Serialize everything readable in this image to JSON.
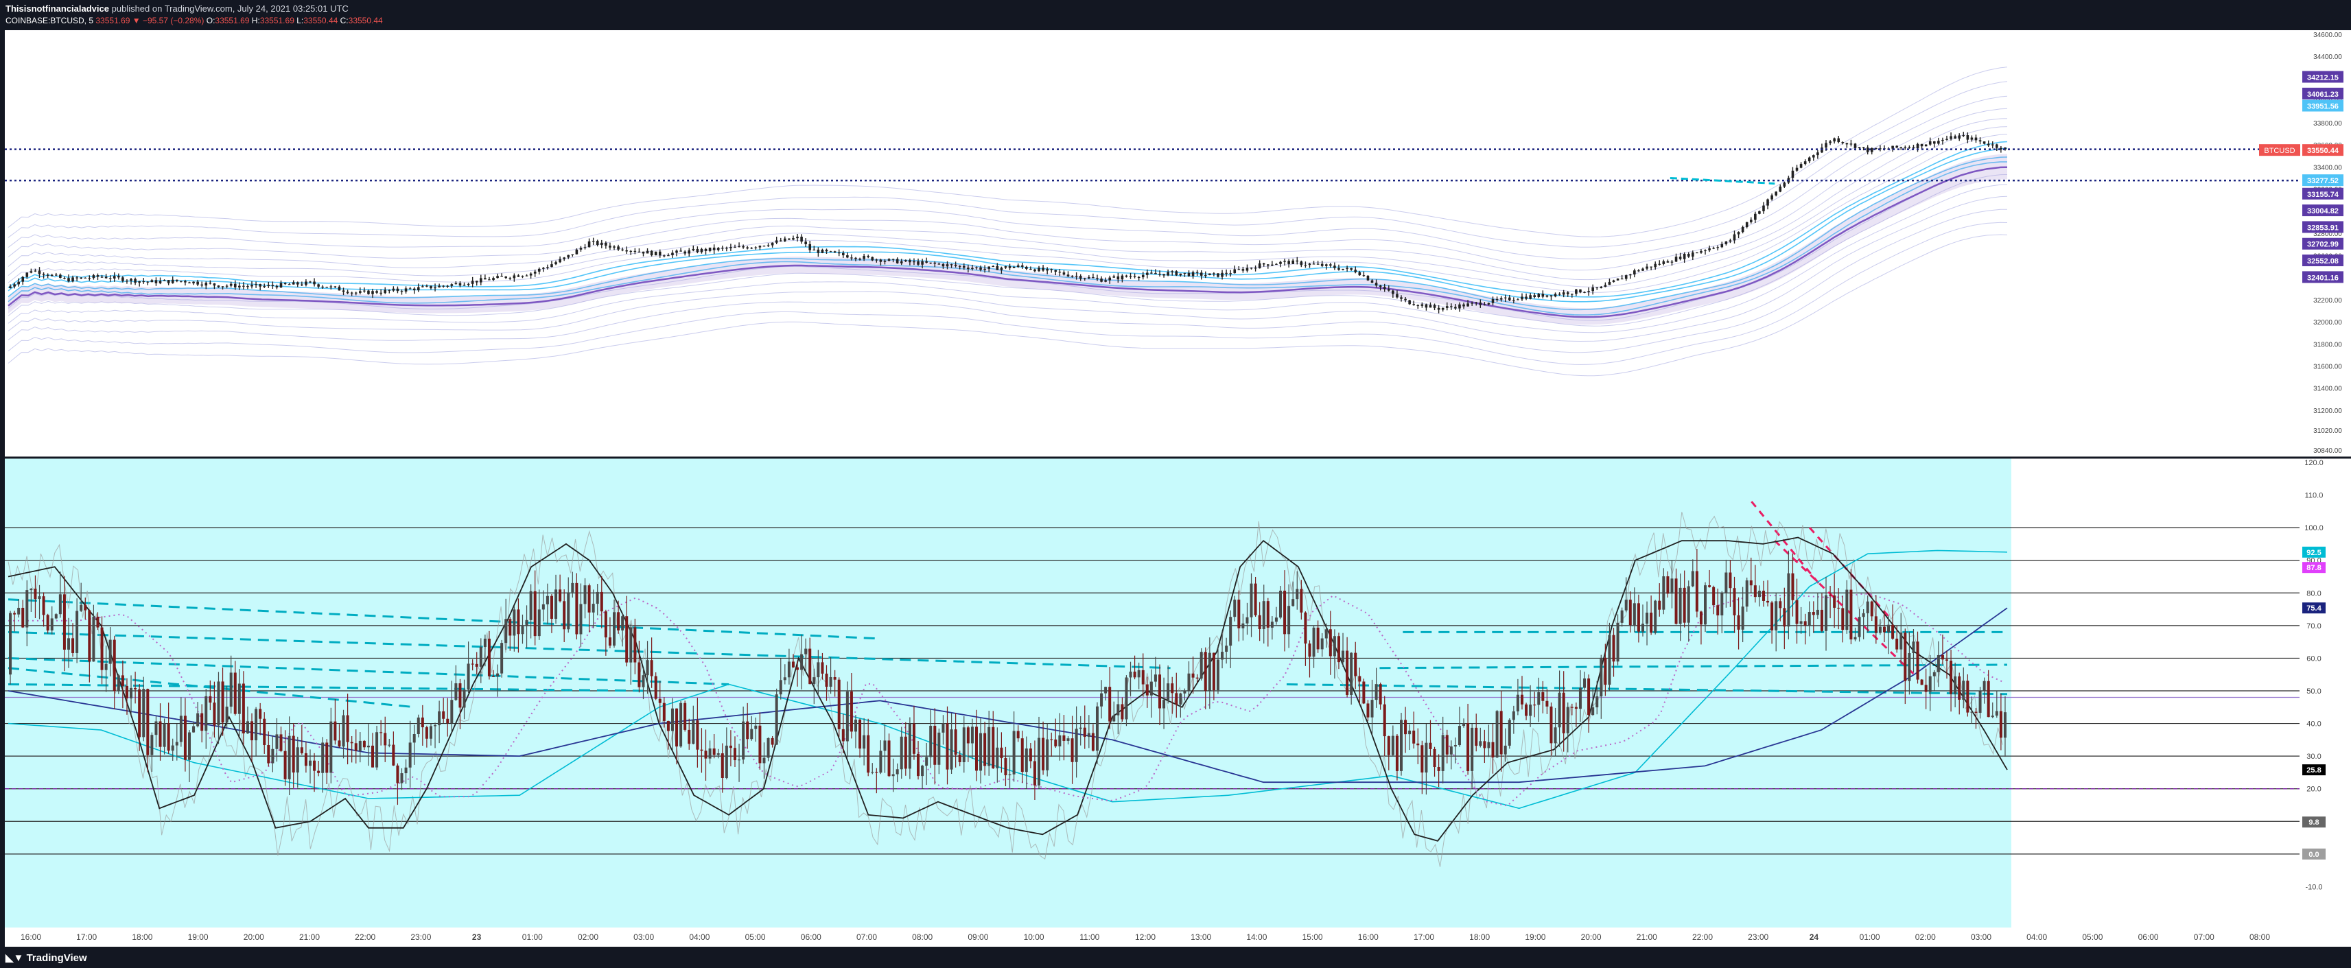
{
  "header": {
    "author": "Thisisnotfinancialadvice",
    "published": " published on TradingView.com, July 24, 2021 03:25:01 UTC",
    "symbol": "COINBASE:BTCUSD, 5",
    "last": "33551.69",
    "change": "▼ −95.57 (−0.28%)",
    "open_label": "O:",
    "open": "33551.69",
    "high_label": "H:",
    "high": "33551.69",
    "low_label": "L:",
    "low": "33550.44",
    "close_label": "C:",
    "close": "33550.44"
  },
  "footer": {
    "brand": "TradingView",
    "logo_icon": "tradingview-logo-icon"
  },
  "colors": {
    "background": "#131722",
    "pane": "#ffffff",
    "osc_bg": "#c8fafc",
    "up": "#4a4a4a",
    "down": "#7b1a1a",
    "band": "#8a8fd8",
    "cyan": "#00bcd4",
    "magenta": "#e91e63",
    "label_purple": "#5b3aa6"
  },
  "chart_data": [
    {
      "type": "candlestick",
      "symbol": "COINBASE:BTCUSD",
      "interval": "5",
      "ylim": [
        30840,
        34600
      ],
      "y_ticks": [
        "34600.00",
        "34400.00",
        "34200.00",
        "34000.00",
        "33800.00",
        "33600.00",
        "33400.00",
        "33200.00",
        "33000.00",
        "32800.00",
        "32600.00",
        "32400.00",
        "32200.00",
        "32000.00",
        "31800.00",
        "31600.00",
        "31400.00",
        "31200.00",
        "31020.00",
        "30840.00"
      ],
      "horizontal_lines": [
        33560,
        33277.52
      ],
      "price_label": {
        "name": "BTCUSD",
        "value": "33550.44"
      },
      "right_labels": [
        "34212.15",
        "34061.23",
        "33951.56",
        "33277.52",
        "33155.74",
        "33004.82",
        "32853.91",
        "32702.99",
        "32552.08",
        "32401.16"
      ],
      "path": [
        [
          0,
          32305
        ],
        [
          0.02,
          32470
        ],
        [
          0.05,
          32380
        ],
        [
          0.08,
          32410
        ],
        [
          0.12,
          32360
        ],
        [
          0.15,
          32370
        ],
        [
          0.18,
          32330
        ],
        [
          0.22,
          32320
        ],
        [
          0.26,
          32350
        ],
        [
          0.3,
          32260
        ],
        [
          0.33,
          32280
        ],
        [
          0.37,
          32320
        ],
        [
          0.41,
          32380
        ],
        [
          0.45,
          32440
        ],
        [
          0.48,
          32580
        ],
        [
          0.5,
          32720
        ],
        [
          0.53,
          32660
        ],
        [
          0.56,
          32610
        ],
        [
          0.6,
          32650
        ],
        [
          0.64,
          32680
        ],
        [
          0.68,
          32760
        ],
        [
          0.69,
          32650
        ],
        [
          0.72,
          32600
        ],
        [
          0.76,
          32550
        ],
        [
          0.8,
          32520
        ],
        [
          0.84,
          32480
        ],
        [
          0.87,
          32500
        ],
        [
          0.91,
          32430
        ],
        [
          0.94,
          32380
        ],
        [
          0.97,
          32420
        ],
        [
          1.0,
          32440
        ],
        [
          1.04,
          32420
        ],
        [
          1.08,
          32520
        ],
        [
          1.1,
          32540
        ],
        [
          1.13,
          32510
        ],
        [
          1.16,
          32460
        ],
        [
          1.18,
          32320
        ],
        [
          1.2,
          32190
        ],
        [
          1.23,
          32120
        ],
        [
          1.26,
          32160
        ],
        [
          1.3,
          32220
        ],
        [
          1.33,
          32250
        ],
        [
          1.37,
          32300
        ],
        [
          1.4,
          32460
        ],
        [
          1.44,
          32590
        ],
        [
          1.48,
          32720
        ],
        [
          1.51,
          33050
        ],
        [
          1.54,
          33400
        ],
        [
          1.57,
          33660
        ],
        [
          1.6,
          33550
        ],
        [
          1.64,
          33590
        ],
        [
          1.68,
          33680
        ],
        [
          1.7,
          33620
        ],
        [
          1.72,
          33560
        ]
      ]
    },
    {
      "type": "line",
      "indicator": "oscillator",
      "ylim": [
        -20,
        120
      ],
      "y_ticks": [
        "120.0",
        "110.0",
        "100.0",
        "90.0",
        "80.0",
        "70.0",
        "60.0",
        "50.0",
        "40.0",
        "30.0",
        "20.0",
        "10.0",
        "0.0",
        "-10.0"
      ],
      "levels": [
        100,
        90,
        80,
        70,
        60,
        50,
        40,
        30,
        20,
        10,
        0
      ],
      "labels": [
        {
          "value": "92.5",
          "color": "#00bcd4"
        },
        {
          "value": "87.8",
          "color": "#e040fb"
        },
        {
          "value": "75.4",
          "color": "#1a237e"
        },
        {
          "value": "25.8",
          "color": "#000000"
        },
        {
          "value": "9.8",
          "color": "#666666"
        },
        {
          "value": "0.0",
          "color": "#9e9e9e"
        }
      ],
      "oscillator": [
        [
          0,
          85
        ],
        [
          0.04,
          88
        ],
        [
          0.08,
          70
        ],
        [
          0.11,
          38
        ],
        [
          0.13,
          14
        ],
        [
          0.16,
          18
        ],
        [
          0.19,
          42
        ],
        [
          0.21,
          28
        ],
        [
          0.23,
          8
        ],
        [
          0.26,
          10
        ],
        [
          0.29,
          17
        ],
        [
          0.31,
          8
        ],
        [
          0.34,
          8
        ],
        [
          0.36,
          20
        ],
        [
          0.4,
          52
        ],
        [
          0.43,
          72
        ],
        [
          0.45,
          88
        ],
        [
          0.48,
          95
        ],
        [
          0.5,
          90
        ],
        [
          0.52,
          80
        ],
        [
          0.54,
          65
        ],
        [
          0.56,
          40
        ],
        [
          0.59,
          18
        ],
        [
          0.62,
          12
        ],
        [
          0.65,
          20
        ],
        [
          0.68,
          60
        ],
        [
          0.71,
          40
        ],
        [
          0.74,
          12
        ],
        [
          0.77,
          11
        ],
        [
          0.8,
          16
        ],
        [
          0.83,
          12
        ],
        [
          0.86,
          8
        ],
        [
          0.89,
          6
        ],
        [
          0.92,
          12
        ],
        [
          0.95,
          42
        ],
        [
          0.98,
          50
        ],
        [
          1.01,
          45
        ],
        [
          1.04,
          62
        ],
        [
          1.06,
          88
        ],
        [
          1.08,
          96
        ],
        [
          1.11,
          88
        ],
        [
          1.14,
          65
        ],
        [
          1.17,
          40
        ],
        [
          1.19,
          20
        ],
        [
          1.21,
          6
        ],
        [
          1.23,
          4
        ],
        [
          1.26,
          18
        ],
        [
          1.29,
          28
        ],
        [
          1.33,
          32
        ],
        [
          1.36,
          42
        ],
        [
          1.38,
          70
        ],
        [
          1.4,
          90
        ],
        [
          1.44,
          96
        ],
        [
          1.48,
          96
        ],
        [
          1.51,
          95
        ],
        [
          1.54,
          97
        ],
        [
          1.57,
          92
        ],
        [
          1.6,
          80
        ],
        [
          1.64,
          62
        ],
        [
          1.67,
          55
        ],
        [
          1.7,
          38
        ],
        [
          1.72,
          25.8
        ]
      ],
      "slow_line": [
        [
          0,
          50
        ],
        [
          0.15,
          41
        ],
        [
          0.31,
          31
        ],
        [
          0.44,
          30
        ],
        [
          0.56,
          40
        ],
        [
          0.75,
          47
        ],
        [
          0.95,
          35
        ],
        [
          1.08,
          22
        ],
        [
          1.3,
          22
        ],
        [
          1.46,
          27
        ],
        [
          1.56,
          38
        ],
        [
          1.64,
          55
        ],
        [
          1.72,
          75.4
        ]
      ],
      "signal_line": [
        [
          0,
          40
        ],
        [
          0.08,
          38
        ],
        [
          0.16,
          28
        ],
        [
          0.31,
          17
        ],
        [
          0.44,
          18
        ],
        [
          0.56,
          45
        ],
        [
          0.62,
          52
        ],
        [
          0.75,
          40
        ],
        [
          0.84,
          28
        ],
        [
          0.95,
          16
        ],
        [
          1.05,
          18
        ],
        [
          1.19,
          24
        ],
        [
          1.3,
          14
        ],
        [
          1.4,
          25
        ],
        [
          1.48,
          55
        ],
        [
          1.55,
          82
        ],
        [
          1.6,
          92
        ],
        [
          1.66,
          93
        ],
        [
          1.72,
          92.5
        ]
      ]
    }
  ],
  "x_axis": {
    "ticks": [
      "16:00",
      "17:00",
      "18:00",
      "19:00",
      "20:00",
      "21:00",
      "22:00",
      "23:00",
      "23",
      "01:00",
      "02:00",
      "03:00",
      "04:00",
      "05:00",
      "06:00",
      "07:00",
      "08:00",
      "09:00",
      "10:00",
      "11:00",
      "12:00",
      "13:00",
      "14:00",
      "15:00",
      "16:00",
      "17:00",
      "18:00",
      "19:00",
      "20:00",
      "21:00",
      "22:00",
      "23:00",
      "24",
      "01:00",
      "02:00",
      "03:00",
      "04:00",
      "05:00",
      "06:00",
      "07:00",
      "08:00"
    ]
  }
}
